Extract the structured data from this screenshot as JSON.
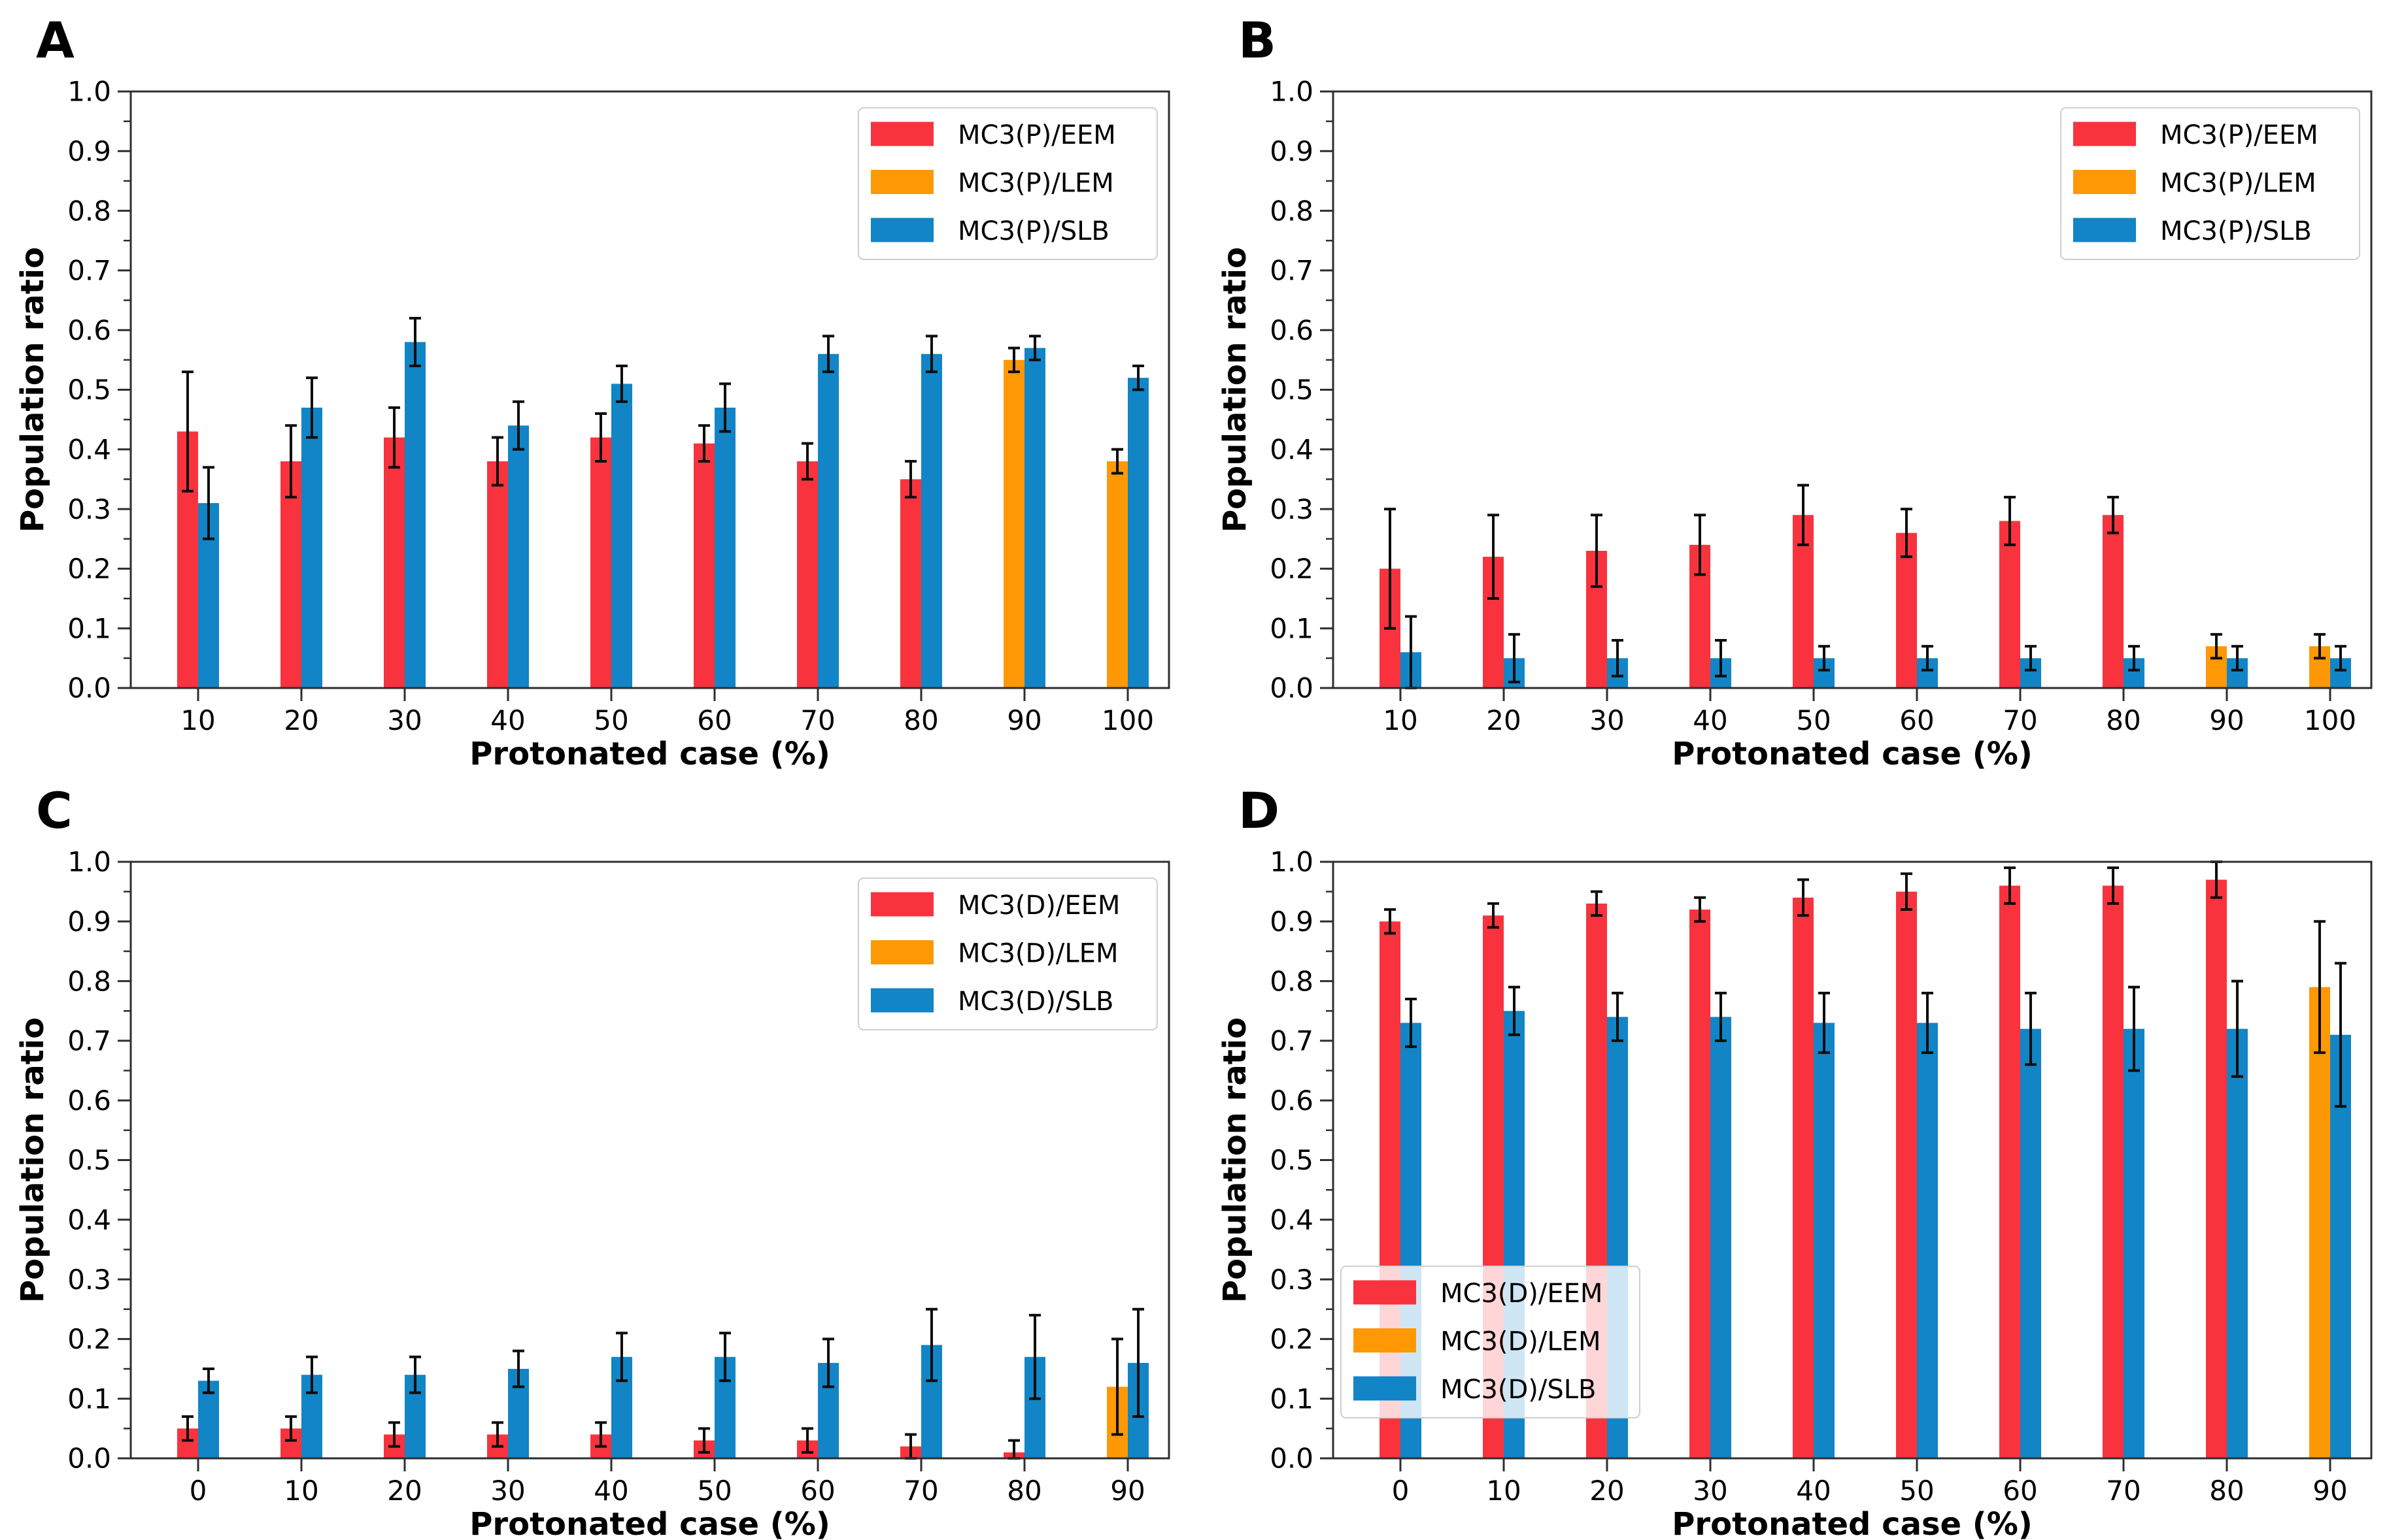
{
  "figure": {
    "background": "#ffffff",
    "xlabel": "Protonated case (%)",
    "ylabel": "Population ratio",
    "y_tick_labels": [
      "0.0",
      "0.1",
      "0.2",
      "0.3",
      "0.4",
      "0.5",
      "0.6",
      "0.7",
      "0.8",
      "0.9",
      "1.0"
    ],
    "colors": {
      "eem": "#f8333e",
      "lem": "#ff9805",
      "slb": "#1185c6",
      "axis": "#2e2e2e",
      "error_bar": "#0d0d0d",
      "text": "#000000",
      "legend_bg": "rgba(255,255,255,0.8)",
      "legend_border": "#cfcfcf"
    }
  },
  "chart_data": [
    {
      "panel_label": "A",
      "type": "bar",
      "xlabel": "Protonated case (%)",
      "ylabel": "Population ratio",
      "ylim": [
        0.0,
        1.0
      ],
      "grid": false,
      "legend_position": "top-right",
      "categories": [
        "10",
        "20",
        "30",
        "40",
        "50",
        "60",
        "70",
        "80",
        "90",
        "100"
      ],
      "series": [
        {
          "name": "MC3(P)/EEM",
          "color_key": "eem",
          "values": [
            0.43,
            0.38,
            0.42,
            0.38,
            0.42,
            0.41,
            0.38,
            0.35,
            null,
            null
          ],
          "errors": [
            0.1,
            0.06,
            0.05,
            0.04,
            0.04,
            0.03,
            0.03,
            0.03,
            null,
            null
          ]
        },
        {
          "name": "MC3(P)/LEM",
          "color_key": "lem",
          "values": [
            null,
            null,
            null,
            null,
            null,
            null,
            null,
            null,
            0.55,
            0.38
          ],
          "errors": [
            null,
            null,
            null,
            null,
            null,
            null,
            null,
            null,
            0.02,
            0.02
          ]
        },
        {
          "name": "MC3(P)/SLB",
          "color_key": "slb",
          "values": [
            0.31,
            0.47,
            0.58,
            0.44,
            0.51,
            0.47,
            0.56,
            0.56,
            0.57,
            0.52
          ],
          "errors": [
            0.06,
            0.05,
            0.04,
            0.04,
            0.03,
            0.04,
            0.03,
            0.03,
            0.02,
            0.02
          ]
        }
      ]
    },
    {
      "panel_label": "B",
      "type": "bar",
      "xlabel": "Protonated case (%)",
      "ylabel": "Population ratio",
      "ylim": [
        0.0,
        1.0
      ],
      "grid": false,
      "legend_position": "top-right",
      "categories": [
        "10",
        "20",
        "30",
        "40",
        "50",
        "60",
        "70",
        "80",
        "90",
        "100"
      ],
      "series": [
        {
          "name": "MC3(P)/EEM",
          "color_key": "eem",
          "values": [
            0.2,
            0.22,
            0.23,
            0.24,
            0.29,
            0.26,
            0.28,
            0.29,
            null,
            null
          ],
          "errors": [
            0.1,
            0.07,
            0.06,
            0.05,
            0.05,
            0.04,
            0.04,
            0.03,
            null,
            null
          ]
        },
        {
          "name": "MC3(P)/LEM",
          "color_key": "lem",
          "values": [
            null,
            null,
            null,
            null,
            null,
            null,
            null,
            null,
            0.07,
            0.07
          ],
          "errors": [
            null,
            null,
            null,
            null,
            null,
            null,
            null,
            null,
            0.02,
            0.02
          ]
        },
        {
          "name": "MC3(P)/SLB",
          "color_key": "slb",
          "values": [
            0.06,
            0.05,
            0.05,
            0.05,
            0.05,
            0.05,
            0.05,
            0.05,
            0.05,
            0.05
          ],
          "errors": [
            0.06,
            0.04,
            0.03,
            0.03,
            0.02,
            0.02,
            0.02,
            0.02,
            0.02,
            0.02
          ]
        }
      ]
    },
    {
      "panel_label": "C",
      "type": "bar",
      "xlabel": "Protonated case (%)",
      "ylabel": "Population ratio",
      "ylim": [
        0.0,
        1.0
      ],
      "grid": false,
      "legend_position": "top-right",
      "categories": [
        "0",
        "10",
        "20",
        "30",
        "40",
        "50",
        "60",
        "70",
        "80",
        "90"
      ],
      "series": [
        {
          "name": "MC3(D)/EEM",
          "color_key": "eem",
          "values": [
            0.05,
            0.05,
            0.04,
            0.04,
            0.04,
            0.03,
            0.03,
            0.02,
            0.01,
            null
          ],
          "errors": [
            0.02,
            0.02,
            0.02,
            0.02,
            0.02,
            0.02,
            0.02,
            0.02,
            0.02,
            null
          ]
        },
        {
          "name": "MC3(D)/LEM",
          "color_key": "lem",
          "values": [
            null,
            null,
            null,
            null,
            null,
            null,
            null,
            null,
            null,
            0.12
          ],
          "errors": [
            null,
            null,
            null,
            null,
            null,
            null,
            null,
            null,
            null,
            0.08
          ]
        },
        {
          "name": "MC3(D)/SLB",
          "color_key": "slb",
          "values": [
            0.13,
            0.14,
            0.14,
            0.15,
            0.17,
            0.17,
            0.16,
            0.19,
            0.17,
            0.16
          ],
          "errors": [
            0.02,
            0.03,
            0.03,
            0.03,
            0.04,
            0.04,
            0.04,
            0.06,
            0.07,
            0.09
          ]
        }
      ]
    },
    {
      "panel_label": "D",
      "type": "bar",
      "xlabel": "Protonated case (%)",
      "ylabel": "Population ratio",
      "ylim": [
        0.0,
        1.0
      ],
      "grid": false,
      "legend_position": "lower-left",
      "categories": [
        "0",
        "10",
        "20",
        "30",
        "40",
        "50",
        "60",
        "70",
        "80",
        "90"
      ],
      "series": [
        {
          "name": "MC3(D)/EEM",
          "color_key": "eem",
          "values": [
            0.9,
            0.91,
            0.93,
            0.92,
            0.94,
            0.95,
            0.96,
            0.96,
            0.97,
            null
          ],
          "errors": [
            0.02,
            0.02,
            0.02,
            0.02,
            0.03,
            0.03,
            0.03,
            0.03,
            0.03,
            null
          ]
        },
        {
          "name": "MC3(D)/LEM",
          "color_key": "lem",
          "values": [
            null,
            null,
            null,
            null,
            null,
            null,
            null,
            null,
            null,
            0.79
          ],
          "errors": [
            null,
            null,
            null,
            null,
            null,
            null,
            null,
            null,
            null,
            0.11
          ]
        },
        {
          "name": "MC3(D)/SLB",
          "color_key": "slb",
          "values": [
            0.73,
            0.75,
            0.74,
            0.74,
            0.73,
            0.73,
            0.72,
            0.72,
            0.72,
            0.71
          ],
          "errors": [
            0.04,
            0.04,
            0.04,
            0.04,
            0.05,
            0.05,
            0.06,
            0.07,
            0.08,
            0.12
          ]
        }
      ]
    }
  ]
}
